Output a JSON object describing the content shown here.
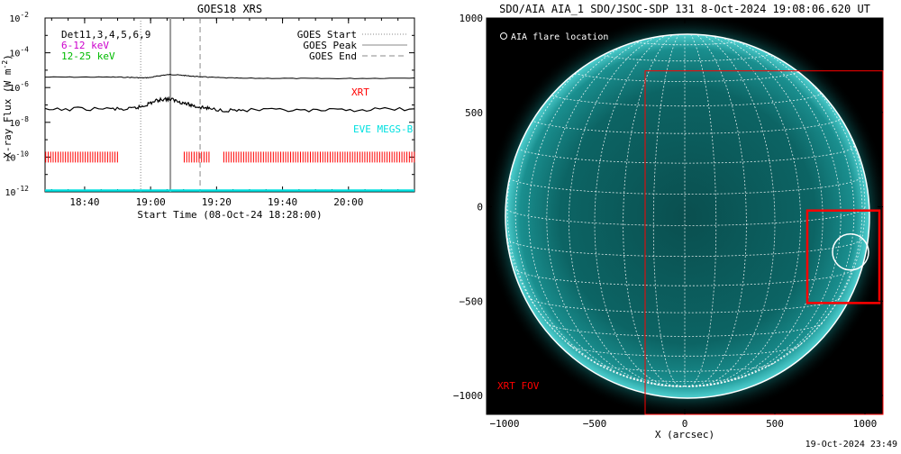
{
  "goes_panel": {
    "title": "GOES18 XRS",
    "ylabel": "X-ray Flux (W m",
    "ylabel_exp": "-2",
    "ylabel_close": ")",
    "xlabel": "Start Time (08-Oct-24 18:28:00)",
    "y_ticks": [
      {
        "label": "10",
        "exp": "-2",
        "value": -2
      },
      {
        "label": "10",
        "exp": "-4",
        "value": -4
      },
      {
        "label": "10",
        "exp": "-6",
        "value": -6
      },
      {
        "label": "10",
        "exp": "-8",
        "value": -8
      },
      {
        "label": "10",
        "exp": "-10",
        "value": -10
      },
      {
        "label": "10",
        "exp": "-12",
        "value": -12
      }
    ],
    "x_ticks": [
      {
        "label": "18:40",
        "minutes": 12
      },
      {
        "label": "19:00",
        "minutes": 32
      },
      {
        "label": "19:20",
        "minutes": 52
      },
      {
        "label": "19:40",
        "minutes": 72
      },
      {
        "label": "20:00",
        "minutes": 92
      }
    ],
    "info_lines": [
      {
        "text": "Det11,3,4,5,6,9",
        "color": "#000000"
      },
      {
        "text": "6-12 keV",
        "color": "#cc00cc"
      },
      {
        "text": "12-25 keV",
        "color": "#00bb00"
      }
    ],
    "legend": [
      {
        "label": "GOES Start",
        "style": "dotted"
      },
      {
        "label": "GOES Peak",
        "style": "solid"
      },
      {
        "label": "GOES End",
        "style": "dashed"
      }
    ],
    "xrt_label": "XRT",
    "eve_label": "EVE MEGS-B",
    "colors": {
      "xrt": "#ff0000",
      "eve": "#00e0e0",
      "goes_line": "#000000",
      "marker": "#999999"
    }
  },
  "aia_panel": {
    "title": "SDO/AIA AIA_1 SDO/JSOC-SDP 131  8-Oct-2024 19:08:06.620 UT",
    "legend_text": "AIA flare location",
    "fov_label": "XRT FOV",
    "xlabel": "X (arcsec)",
    "x_ticks": [
      "−1000",
      "−500",
      "0",
      "500",
      "1000"
    ],
    "y_ticks": [
      "1000",
      "500",
      "0",
      "−500",
      "−1000"
    ],
    "colors": {
      "disk": "#0b6b6b",
      "fov": "#ff0000",
      "grid": "#ffffff"
    }
  },
  "timestamp": "19-Oct-2024 23:49",
  "chart_data": [
    {
      "type": "line",
      "title": "GOES18 XRS",
      "xlabel": "Start Time (08-Oct-24 18:28:00)",
      "ylabel": "X-ray Flux (W m^-2)",
      "x_unit": "minutes since 18:28:00",
      "xlim": [
        0,
        112
      ],
      "y_scale": "log",
      "ylim": [
        1e-12,
        0.01
      ],
      "series": [
        {
          "x": [
            0,
            10,
            20,
            25,
            28,
            30,
            32,
            34,
            36,
            38,
            40,
            42,
            44,
            46,
            48,
            50,
            55,
            60,
            70,
            80,
            90,
            100,
            112
          ],
          "values": [
            4e-06,
            4e-06,
            4e-06,
            3.9e-06,
            3.7e-06,
            3.6e-06,
            3.8e-06,
            4.5e-06,
            5.2e-06,
            5.6e-06,
            5.4e-06,
            5e-06,
            4.6e-06,
            4.3e-06,
            4.1e-06,
            3.9e-06,
            3.6e-06,
            3.4e-06,
            3.4e-06,
            3.3e-06,
            3.3e-06,
            3.4e-06,
            3.6e-06
          ]
        },
        {
          "x": [
            0,
            10,
            20,
            25,
            28,
            30,
            32,
            34,
            36,
            38,
            40,
            42,
            44,
            46,
            48,
            50,
            55,
            60,
            70,
            80,
            90,
            100,
            112
          ],
          "values": [
            5e-08,
            6e-08,
            6e-08,
            5.5e-08,
            7e-08,
            9e-08,
            1.3e-07,
            1.8e-07,
            2.2e-07,
            2.1e-07,
            1.7e-07,
            1.3e-07,
            1e-07,
            8e-08,
            7e-08,
            6e-08,
            5e-08,
            5e-08,
            5e-08,
            4.5e-08,
            5e-08,
            5.5e-08,
            6e-08
          ]
        }
      ],
      "xrt_intervals": [
        [
          0,
          22
        ],
        [
          42,
          50
        ],
        [
          54,
          112
        ]
      ],
      "eve_interval": [
        0,
        112
      ],
      "goes_start": 29,
      "goes_peak": 38,
      "goes_end": 47
    },
    {
      "type": "scatter",
      "title": "SDO/AIA AIA_1 SDO/JSOC-SDP 131  8-Oct-2024 19:08:06.620 UT",
      "xlabel": "X (arcsec)",
      "xlim": [
        -1100,
        1100
      ],
      "ylim": [
        -1100,
        1000
      ],
      "solar_radius": 1000,
      "xrt_fov": {
        "x": [
          -220,
          1100
        ],
        "y": [
          -1100,
          720
        ]
      },
      "inner_box": {
        "x": [
          680,
          1080
        ],
        "y": [
          -510,
          -20
        ]
      },
      "flare_location": {
        "x": 920,
        "y": -240
      }
    }
  ]
}
